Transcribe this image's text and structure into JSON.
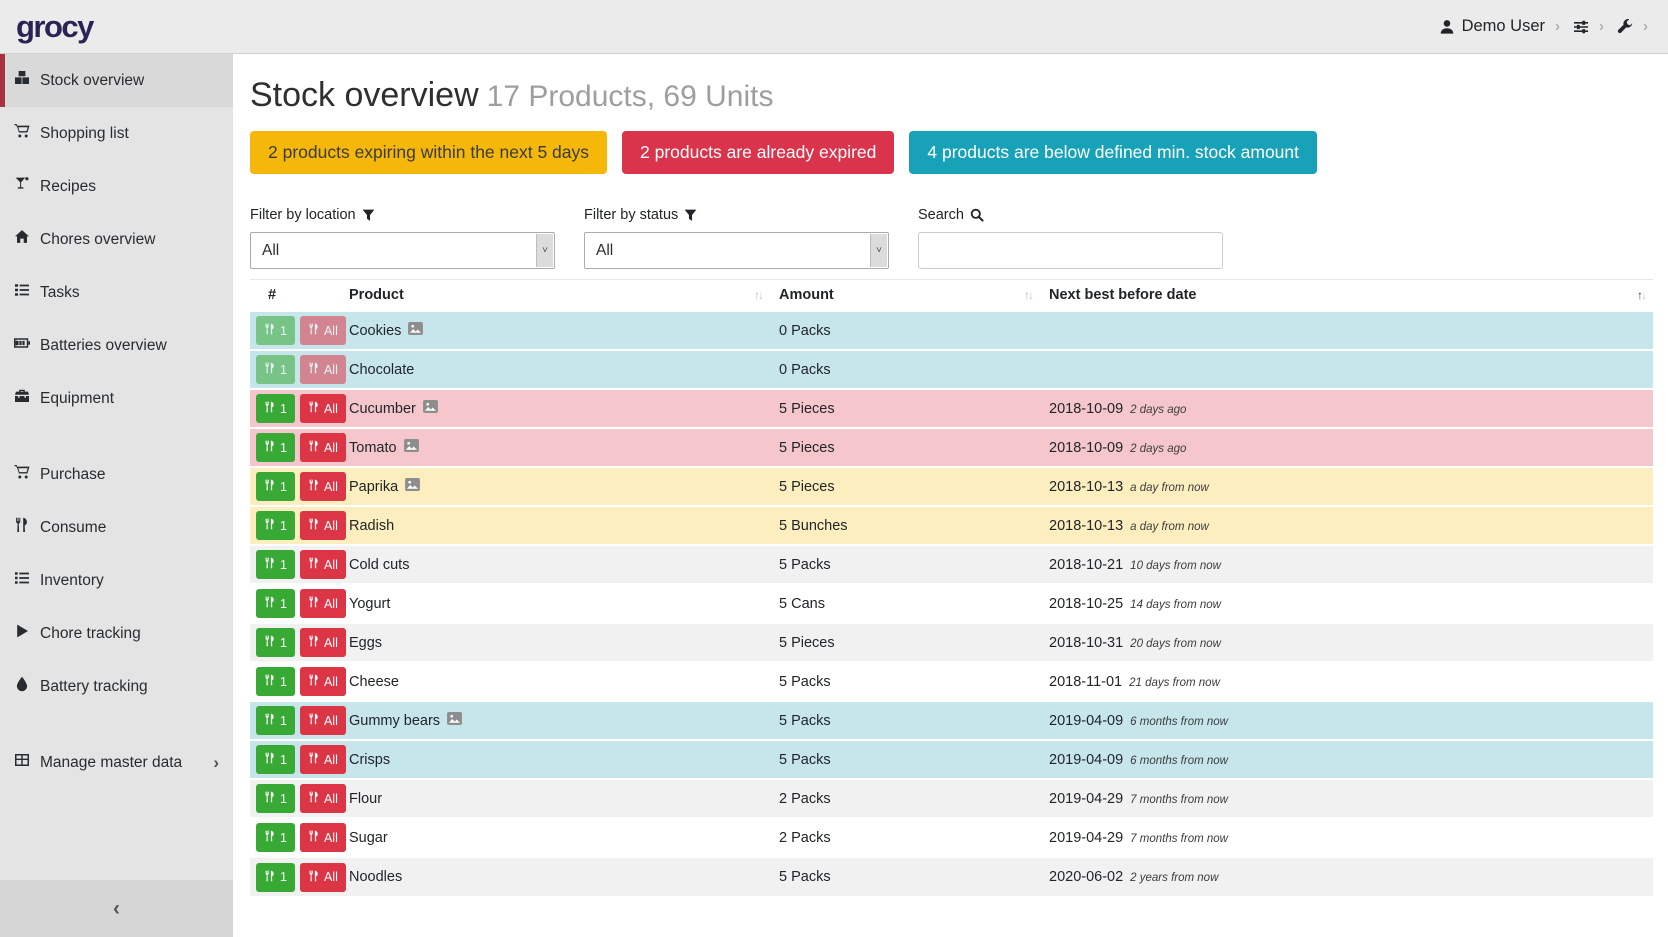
{
  "navbar": {
    "logo": "grocy",
    "user_label": "Demo User"
  },
  "sidebar": {
    "items": [
      {
        "label": "Stock overview",
        "icon": "boxes",
        "active": true,
        "section": 0
      },
      {
        "label": "Shopping list",
        "icon": "cart",
        "active": false,
        "section": 0
      },
      {
        "label": "Recipes",
        "icon": "cocktail",
        "active": false,
        "section": 0
      },
      {
        "label": "Chores overview",
        "icon": "home",
        "active": false,
        "section": 0
      },
      {
        "label": "Tasks",
        "icon": "tasks",
        "active": false,
        "section": 0
      },
      {
        "label": "Batteries overview",
        "icon": "battery",
        "active": false,
        "section": 0
      },
      {
        "label": "Equipment",
        "icon": "toolbox",
        "active": false,
        "section": 0
      },
      {
        "label": "Purchase",
        "icon": "cart",
        "active": false,
        "section": 1
      },
      {
        "label": "Consume",
        "icon": "utensils",
        "active": false,
        "section": 1
      },
      {
        "label": "Inventory",
        "icon": "list",
        "active": false,
        "section": 1
      },
      {
        "label": "Chore tracking",
        "icon": "play",
        "active": false,
        "section": 1
      },
      {
        "label": "Battery tracking",
        "icon": "tint",
        "active": false,
        "section": 1
      },
      {
        "label": "Manage master data",
        "icon": "table",
        "active": false,
        "section": 2,
        "has_submenu": true
      }
    ],
    "collapse_glyph": "‹"
  },
  "header": {
    "title": "Stock overview",
    "subtitle": "17 Products, 69 Units"
  },
  "alerts": [
    {
      "label": "2 products expiring within the next 5 days",
      "type": "warning"
    },
    {
      "label": "2 products are already expired",
      "type": "danger"
    },
    {
      "label": "4 products are below defined min. stock amount",
      "type": "info"
    }
  ],
  "filters": {
    "location_label": "Filter by location",
    "status_label": "Filter by status",
    "search_label": "Search",
    "location_value": "All",
    "status_value": "All",
    "search_value": ""
  },
  "table": {
    "columns": [
      {
        "label": "#",
        "sortable": false,
        "sorted": "none"
      },
      {
        "label": "Product",
        "sortable": true,
        "sorted": "none"
      },
      {
        "label": "Amount",
        "sortable": true,
        "sorted": "none"
      },
      {
        "label": "Next best before date",
        "sortable": true,
        "sorted": "asc"
      }
    ],
    "consume_one_label": "1",
    "consume_all_label": "All",
    "rows": [
      {
        "product": "Cookies",
        "has_image": true,
        "amount": "0 Packs",
        "best_before": "",
        "relative": "",
        "status": "info",
        "disabled": true
      },
      {
        "product": "Chocolate",
        "has_image": false,
        "amount": "0 Packs",
        "best_before": "",
        "relative": "",
        "status": "info",
        "disabled": true
      },
      {
        "product": "Cucumber",
        "has_image": true,
        "amount": "5 Pieces",
        "best_before": "2018-10-09",
        "relative": "2 days ago",
        "status": "danger",
        "disabled": false
      },
      {
        "product": "Tomato",
        "has_image": true,
        "amount": "5 Pieces",
        "best_before": "2018-10-09",
        "relative": "2 days ago",
        "status": "danger",
        "disabled": false
      },
      {
        "product": "Paprika",
        "has_image": true,
        "amount": "5 Pieces",
        "best_before": "2018-10-13",
        "relative": "a day from now",
        "status": "warning",
        "disabled": false
      },
      {
        "product": "Radish",
        "has_image": false,
        "amount": "5 Bunches",
        "best_before": "2018-10-13",
        "relative": "a day from now",
        "status": "warning",
        "disabled": false
      },
      {
        "product": "Cold cuts",
        "has_image": false,
        "amount": "5 Packs",
        "best_before": "2018-10-21",
        "relative": "10 days from now",
        "status": "none",
        "disabled": false
      },
      {
        "product": "Yogurt",
        "has_image": false,
        "amount": "5 Cans",
        "best_before": "2018-10-25",
        "relative": "14 days from now",
        "status": "none",
        "disabled": false
      },
      {
        "product": "Eggs",
        "has_image": false,
        "amount": "5 Pieces",
        "best_before": "2018-10-31",
        "relative": "20 days from now",
        "status": "none",
        "disabled": false
      },
      {
        "product": "Cheese",
        "has_image": false,
        "amount": "5 Packs",
        "best_before": "2018-11-01",
        "relative": "21 days from now",
        "status": "none",
        "disabled": false
      },
      {
        "product": "Gummy bears",
        "has_image": true,
        "amount": "5 Packs",
        "best_before": "2019-04-09",
        "relative": "6 months from now",
        "status": "info",
        "disabled": false
      },
      {
        "product": "Crisps",
        "has_image": false,
        "amount": "5 Packs",
        "best_before": "2019-04-09",
        "relative": "6 months from now",
        "status": "info",
        "disabled": false
      },
      {
        "product": "Flour",
        "has_image": false,
        "amount": "2 Packs",
        "best_before": "2019-04-29",
        "relative": "7 months from now",
        "status": "none",
        "disabled": false
      },
      {
        "product": "Sugar",
        "has_image": false,
        "amount": "2 Packs",
        "best_before": "2019-04-29",
        "relative": "7 months from now",
        "status": "none",
        "disabled": false
      },
      {
        "product": "Noodles",
        "has_image": false,
        "amount": "5 Packs",
        "best_before": "2020-06-02",
        "relative": "2 years from now",
        "status": "none",
        "disabled": false
      }
    ]
  },
  "colors": {
    "accent_red": "#a8323e",
    "logo": "#2a2456",
    "alert_warning": "#f5b70a",
    "alert_danger": "#d9344c",
    "alert_info": "#17a2b8",
    "row_info": "#c6e6ec",
    "row_danger": "#f5c6cb",
    "row_warning": "#fceebe",
    "row_stripe": "#f1f1f1",
    "btn_consume_one": "#39a935",
    "btn_consume_all": "#dc3545"
  }
}
